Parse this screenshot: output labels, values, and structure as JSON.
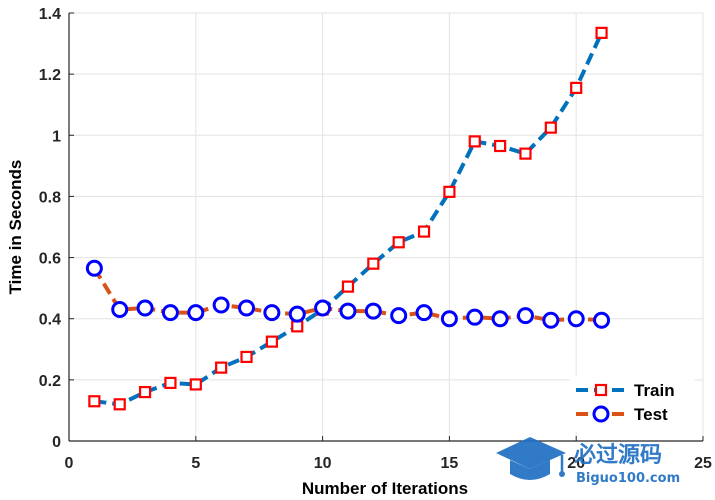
{
  "chart_data": {
    "type": "line",
    "title": "",
    "xlabel": "Number of Iterations",
    "ylabel": "Time in Seconds",
    "xlim": [
      0,
      25
    ],
    "ylim": [
      0,
      1.4
    ],
    "xticks": [
      "0",
      "5",
      "10",
      "15",
      "20",
      "25"
    ],
    "yticks": [
      "0",
      "0.2",
      "0.4",
      "0.6",
      "0.8",
      "1",
      "1.2",
      "1.4"
    ],
    "grid": true,
    "legend_position": "bottom-right",
    "series": [
      {
        "name": "Train",
        "color": "#0072BD",
        "marker": "square",
        "marker_color": "#FF0000",
        "line_style": "dashed",
        "x": [
          1,
          2,
          3,
          4,
          5,
          6,
          7,
          8,
          9,
          10,
          11,
          12,
          13,
          14,
          15,
          16,
          17,
          18,
          19,
          20,
          21
        ],
        "values": [
          0.13,
          0.12,
          0.16,
          0.19,
          0.185,
          0.24,
          0.275,
          0.325,
          0.375,
          0.43,
          0.505,
          0.58,
          0.65,
          0.685,
          0.815,
          0.98,
          0.965,
          0.94,
          1.025,
          1.155,
          1.335
        ]
      },
      {
        "name": "Test",
        "color": "#D95319",
        "marker": "circle",
        "marker_color": "#0000FF",
        "line_style": "dashed",
        "x": [
          1,
          2,
          3,
          4,
          5,
          6,
          7,
          8,
          9,
          10,
          11,
          12,
          13,
          14,
          15,
          16,
          17,
          18,
          19,
          20,
          21
        ],
        "values": [
          0.565,
          0.43,
          0.435,
          0.42,
          0.42,
          0.445,
          0.435,
          0.42,
          0.415,
          0.435,
          0.425,
          0.425,
          0.41,
          0.42,
          0.4,
          0.405,
          0.4,
          0.41,
          0.395,
          0.4,
          0.395
        ]
      }
    ]
  },
  "watermark": {
    "text_main": "必过源码",
    "text_sub": "Biguo100.com",
    "icon": "graduation-cap-icon",
    "color": "#1f6fc4"
  }
}
